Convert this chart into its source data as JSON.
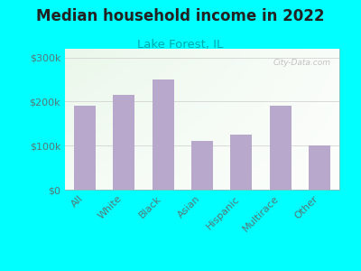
{
  "title": "Median household income in 2022",
  "subtitle": "Lake Forest, IL",
  "categories": [
    "All",
    "White",
    "Black",
    "Asian",
    "Hispanic",
    "Multirace",
    "Other"
  ],
  "values": [
    190000,
    215000,
    250000,
    110000,
    125000,
    190000,
    100000
  ],
  "bar_color": "#b8a8cc",
  "background_color": "#00ffff",
  "title_color": "#222222",
  "subtitle_color": "#00aaaa",
  "tick_label_color": "#557777",
  "ytick_labels": [
    "$0",
    "$100k",
    "$200k",
    "$300k"
  ],
  "ytick_values": [
    0,
    100000,
    200000,
    300000
  ],
  "ylim": [
    0,
    320000
  ],
  "watermark": "City-Data.com",
  "title_fontsize": 12,
  "subtitle_fontsize": 9.5,
  "tick_fontsize": 8
}
